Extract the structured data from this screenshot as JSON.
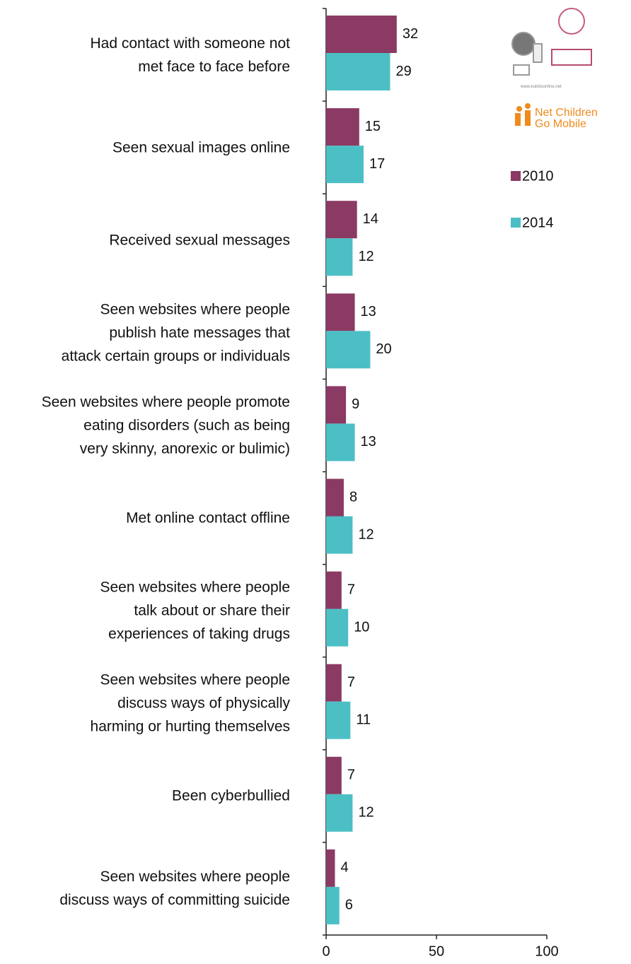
{
  "chart_data": {
    "type": "bar",
    "orientation": "horizontal",
    "categories": [
      "Had contact with someone not\nmet face to face before",
      "Seen sexual images online",
      "Received sexual messages",
      "Seen websites where people\npublish hate messages that\nattack certain groups or individuals",
      "Seen websites where people promote\neating disorders (such as being\nvery skinny, anorexic or bulimic)",
      "Met online contact offline",
      "Seen websites where people\ntalk about or share their\nexperiences of taking drugs",
      "Seen websites where people\ndiscuss ways of physically\nharming or hurting themselves",
      "Been cyberbullied",
      "Seen websites where people\ndiscuss ways of committing suicide"
    ],
    "series": [
      {
        "name": "2010",
        "color": "#8b3a63",
        "values": [
          32,
          15,
          14,
          13,
          9,
          8,
          7,
          7,
          7,
          4
        ]
      },
      {
        "name": "2014",
        "color": "#4cbfc5",
        "values": [
          29,
          17,
          12,
          20,
          13,
          12,
          10,
          11,
          12,
          6
        ]
      }
    ],
    "xlim": [
      0,
      100
    ],
    "xticks": [
      0,
      50,
      100
    ],
    "legend": "top-right",
    "logo": {
      "url": "www.eukidsonline.net",
      "text": "Net Children\nGo Mobile"
    }
  }
}
